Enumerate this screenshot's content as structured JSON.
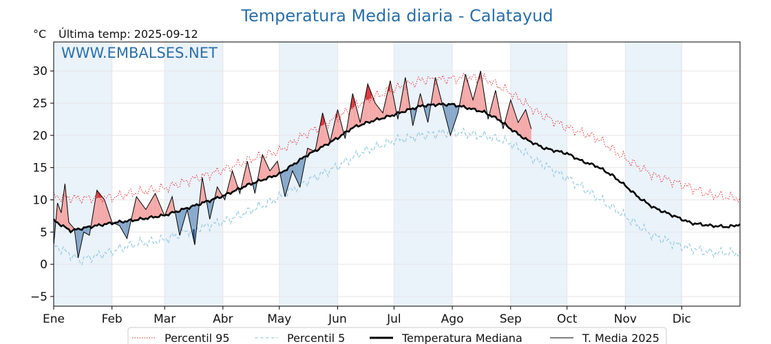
{
  "chart_data": {
    "type": "line",
    "title": "Temperatura Media diaria - Calatayud",
    "ylabel": "°C",
    "subtitle": "Última temp: 2025-09-12",
    "watermark": "WWW.EMBALSES.NET",
    "ylim": [
      -6.5,
      34.5
    ],
    "yticks": [
      -5,
      0,
      5,
      10,
      15,
      20,
      25,
      30
    ],
    "xlim": [
      1,
      366
    ],
    "month_labels": [
      "Ene",
      "Feb",
      "Mar",
      "Abr",
      "May",
      "Jun",
      "Jul",
      "Ago",
      "Sep",
      "Oct",
      "Nov",
      "Dic"
    ],
    "month_start_days": [
      1,
      32,
      60,
      91,
      121,
      152,
      182,
      213,
      244,
      274,
      305,
      335
    ],
    "shaded_months": [
      "Ene",
      "Mar",
      "May",
      "Jul",
      "Sep",
      "Nov"
    ],
    "grid": true,
    "legend_position": "bottom",
    "colors": {
      "p95": "#e41a1c",
      "p5": "#8fc7dc",
      "median": "#000000",
      "t2025": "#000000",
      "above_fill": "#f4a9a8",
      "above_fill_strong": "#d9353a",
      "below_fill": "#86a8cb",
      "below_fill_strong": "#1f4e85",
      "band": "#eaf2fa"
    },
    "series": [
      {
        "name": "Percentil 95",
        "style": "dotted",
        "x": [
          1,
          15,
          32,
          45,
          60,
          75,
          91,
          105,
          121,
          135,
          152,
          165,
          182,
          197,
          213,
          222,
          232,
          244,
          258,
          274,
          290,
          305,
          320,
          335,
          350,
          366
        ],
        "values": [
          10.5,
          10.2,
          10.4,
          11.2,
          11.8,
          13.2,
          14.6,
          16.2,
          17.6,
          20.2,
          22.8,
          25.2,
          27.2,
          28.6,
          28.8,
          29.0,
          28.6,
          26.6,
          23.6,
          21.2,
          19.6,
          16.4,
          13.8,
          12.4,
          10.8,
          10.2
        ]
      },
      {
        "name": "Percentil 5",
        "style": "dashed",
        "x": [
          1,
          15,
          32,
          45,
          60,
          75,
          91,
          105,
          121,
          135,
          152,
          165,
          182,
          197,
          213,
          222,
          232,
          244,
          258,
          274,
          290,
          305,
          320,
          335,
          350,
          366
        ],
        "values": [
          3.0,
          0.6,
          2.0,
          3.2,
          3.8,
          5.4,
          6.6,
          8.2,
          10.4,
          12.8,
          15.2,
          17.4,
          19.2,
          20.0,
          20.6,
          20.2,
          19.8,
          18.8,
          16.0,
          13.4,
          10.4,
          7.4,
          4.4,
          2.8,
          1.8,
          1.8
        ]
      },
      {
        "name": "Temperatura Mediana",
        "style": "solid-thick",
        "x": [
          1,
          10,
          20,
          32,
          45,
          60,
          75,
          91,
          105,
          121,
          135,
          145,
          152,
          160,
          170,
          182,
          190,
          197,
          205,
          213,
          222,
          230,
          238,
          244,
          252,
          262,
          274,
          282,
          290,
          298,
          305,
          312,
          320,
          330,
          340,
          350,
          360,
          366
        ],
        "values": [
          6.8,
          5.2,
          5.8,
          6.4,
          6.9,
          7.6,
          9.0,
          10.6,
          12.4,
          14.0,
          16.8,
          18.4,
          19.6,
          21.2,
          22.2,
          23.2,
          24.0,
          24.6,
          24.8,
          24.8,
          24.2,
          23.6,
          22.4,
          21.0,
          19.4,
          18.0,
          17.2,
          16.0,
          15.2,
          13.8,
          12.2,
          10.4,
          8.8,
          7.6,
          6.4,
          6.0,
          5.8,
          6.2
        ]
      },
      {
        "name": "T. Media 2025",
        "style": "solid",
        "x": [
          1,
          3,
          5,
          7,
          9,
          12,
          14,
          17,
          20,
          24,
          28,
          32,
          36,
          40,
          45,
          50,
          55,
          60,
          64,
          68,
          72,
          76,
          80,
          84,
          88,
          92,
          96,
          100,
          104,
          108,
          112,
          116,
          120,
          124,
          128,
          132,
          136,
          140,
          144,
          148,
          152,
          156,
          160,
          164,
          168,
          172,
          176,
          180,
          184,
          188,
          192,
          196,
          200,
          204,
          208,
          212,
          216,
          220,
          224,
          228,
          232,
          236,
          240,
          244,
          248,
          252,
          255
        ],
        "values": [
          3.0,
          9.5,
          8.0,
          12.5,
          6.5,
          5.5,
          1.0,
          5.0,
          4.5,
          11.5,
          10.0,
          6.5,
          6.0,
          4.0,
          10.5,
          8.5,
          11.0,
          7.5,
          10.5,
          4.5,
          8.5,
          3.0,
          13.5,
          7.0,
          12.0,
          10.0,
          14.5,
          11.0,
          16.0,
          11.0,
          17.0,
          14.5,
          16.0,
          10.5,
          14.5,
          12.0,
          18.0,
          17.5,
          23.5,
          19.0,
          24.0,
          19.5,
          26.5,
          22.0,
          28.0,
          25.0,
          23.5,
          28.5,
          22.5,
          29.0,
          21.5,
          26.5,
          22.0,
          29.0,
          24.5,
          20.0,
          23.5,
          29.5,
          25.5,
          30.0,
          22.5,
          27.0,
          21.0,
          25.5,
          22.0,
          24.0,
          21.0
        ]
      }
    ]
  },
  "legend": {
    "items": [
      "Percentil 95",
      "Percentil 5",
      "Temperatura Mediana",
      "T. Media 2025"
    ]
  }
}
